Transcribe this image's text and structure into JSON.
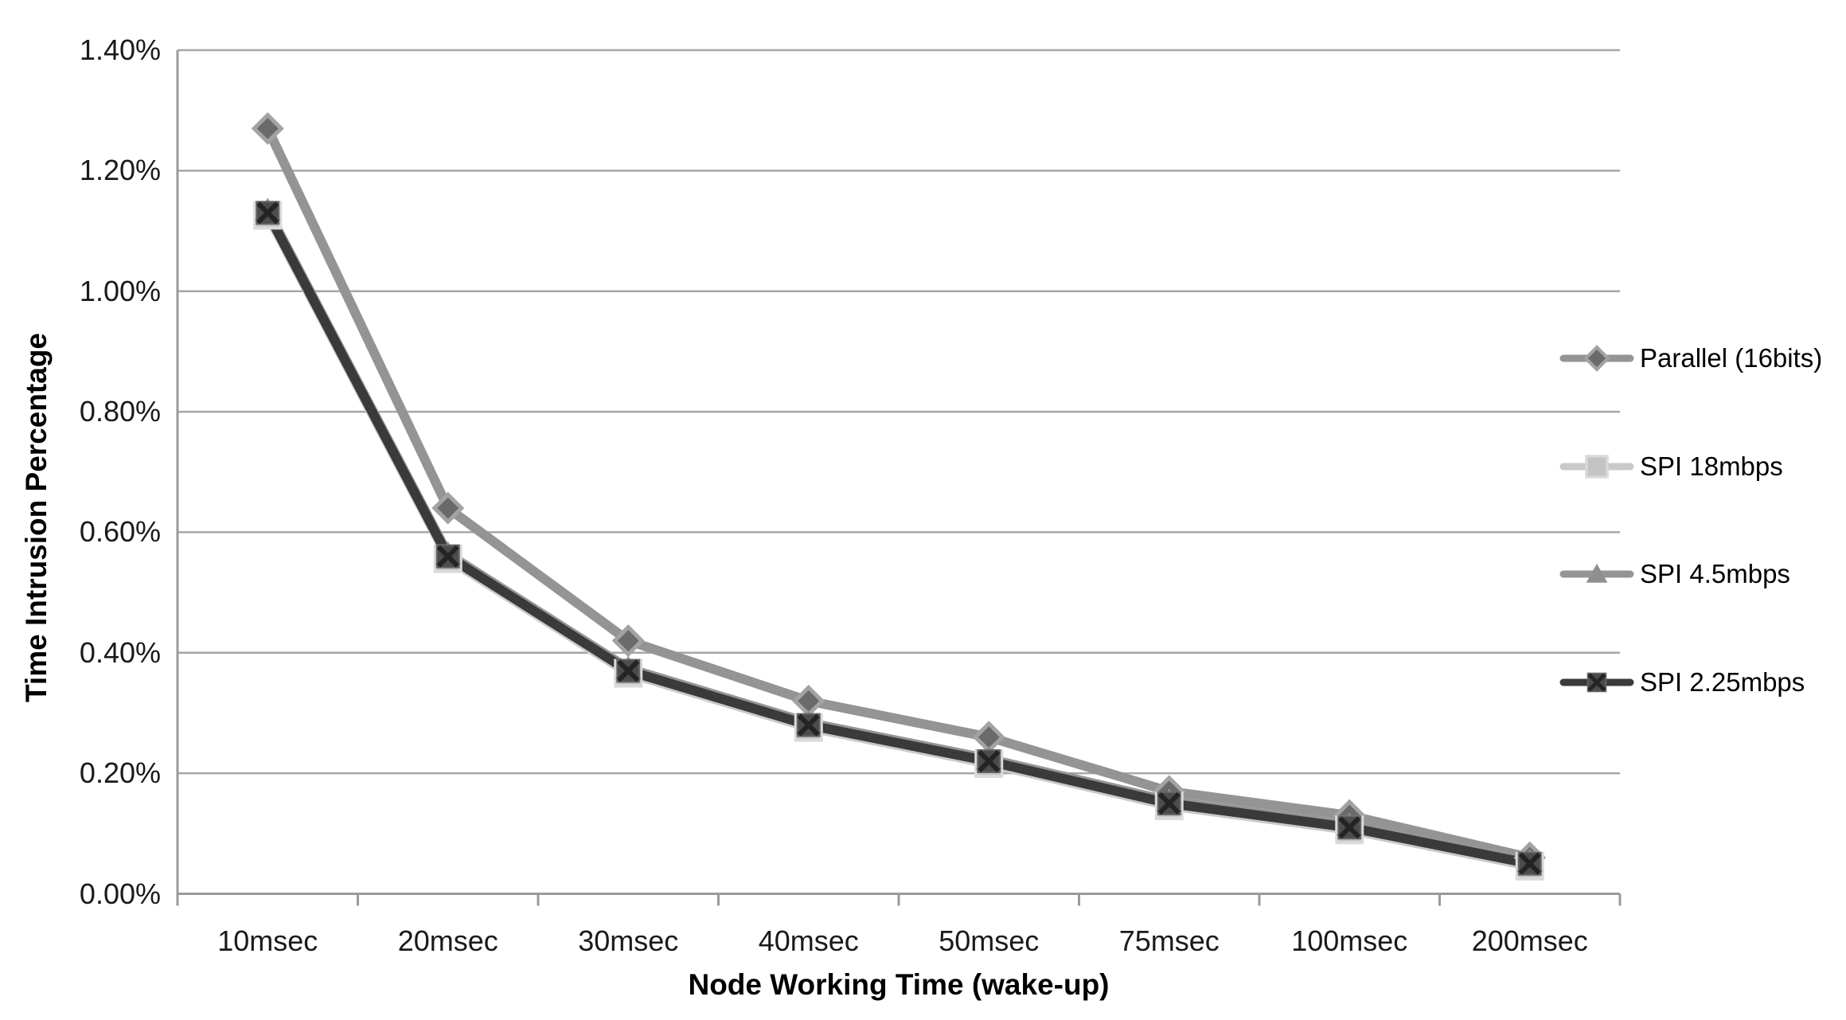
{
  "chart_data": {
    "type": "line",
    "title": "",
    "xlabel": "Node Working Time (wake-up)",
    "ylabel": "Time Intrusion Percentage",
    "categories": [
      "10msec",
      "20msec",
      "30msec",
      "40msec",
      "50msec",
      "75msec",
      "100msec",
      "200msec"
    ],
    "y_axis": {
      "min": 0,
      "max": 1.4,
      "step": 0.2,
      "unit": "%",
      "tick_labels": [
        "0.00%",
        "0.20%",
        "0.40%",
        "0.60%",
        "0.80%",
        "1.00%",
        "1.20%",
        "1.40%"
      ]
    },
    "grid": true,
    "legend_position": "right",
    "series": [
      {
        "name": "Parallel (16bits)",
        "marker": "diamond",
        "color": "#949494",
        "marker_fill": "#6a6a6a",
        "marker_edge": "#a3a3a3",
        "values_percent": [
          1.27,
          0.64,
          0.42,
          0.32,
          0.26,
          0.17,
          0.13,
          0.06
        ]
      },
      {
        "name": "SPI 18mbps",
        "marker": "square",
        "color": "#c9c9c9",
        "marker_fill": "#c4c4c4",
        "marker_edge": "#dadada",
        "values_percent": [
          1.13,
          0.56,
          0.37,
          0.28,
          0.22,
          0.15,
          0.11,
          0.05
        ]
      },
      {
        "name": "SPI 4.5mbps",
        "marker": "triangle",
        "color": "#959595",
        "marker_fill": "#8f8f8f",
        "marker_edge": "#9e9e9e",
        "values_percent": [
          1.13,
          0.56,
          0.37,
          0.28,
          0.22,
          0.15,
          0.11,
          0.05
        ]
      },
      {
        "name": "SPI 2.25mbps",
        "marker": "x-square",
        "color": "#3a3a3a",
        "marker_fill": "#4c4c4c",
        "marker_edge": "#666666",
        "values_percent": [
          1.13,
          0.56,
          0.37,
          0.28,
          0.22,
          0.15,
          0.11,
          0.05
        ]
      }
    ],
    "gridline_color": "#a6a6a6",
    "axis_color": "#9a9a9a"
  }
}
